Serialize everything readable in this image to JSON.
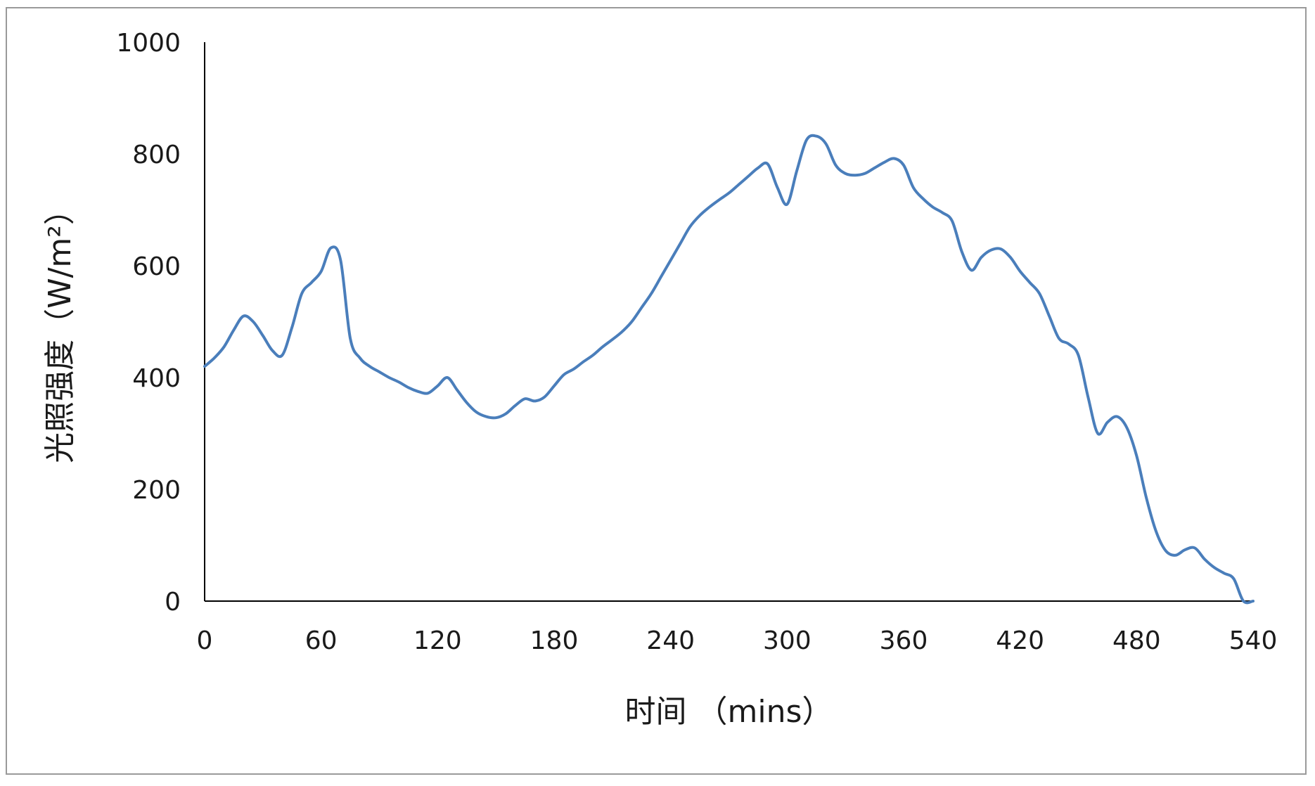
{
  "chart_data": {
    "type": "line",
    "xlabel": "时间 （mins）",
    "ylabel": "光照强度（W/m²）",
    "xlim": [
      0,
      540
    ],
    "ylim": [
      0,
      1000
    ],
    "x_ticks": [
      "0",
      "60",
      "120",
      "180",
      "240",
      "300",
      "360",
      "420",
      "480",
      "540"
    ],
    "y_ticks": [
      "0",
      "200",
      "400",
      "600",
      "800",
      "1000"
    ],
    "grid": false,
    "line_color": "#4A7EBB",
    "series": [
      {
        "x": [
          0,
          5,
          10,
          15,
          20,
          25,
          30,
          35,
          40,
          45,
          50,
          55,
          60,
          65,
          70,
          75,
          80,
          85,
          90,
          95,
          100,
          105,
          110,
          115,
          120,
          125,
          130,
          135,
          140,
          145,
          150,
          155,
          160,
          165,
          170,
          175,
          180,
          185,
          190,
          195,
          200,
          205,
          210,
          215,
          220,
          225,
          230,
          235,
          240,
          245,
          250,
          255,
          260,
          265,
          270,
          275,
          280,
          285,
          290,
          295,
          300,
          305,
          310,
          315,
          320,
          325,
          330,
          335,
          340,
          345,
          350,
          355,
          360,
          365,
          370,
          375,
          380,
          385,
          390,
          395,
          400,
          405,
          410,
          415,
          420,
          425,
          430,
          435,
          440,
          445,
          450,
          455,
          460,
          465,
          470,
          475,
          480,
          485,
          490,
          495,
          500,
          505,
          510,
          515,
          520,
          525,
          530,
          535,
          540
        ],
        "y": [
          420,
          435,
          455,
          485,
          510,
          500,
          475,
          448,
          440,
          490,
          550,
          570,
          590,
          632,
          610,
          470,
          435,
          420,
          410,
          400,
          392,
          382,
          375,
          372,
          385,
          400,
          378,
          355,
          338,
          330,
          328,
          335,
          350,
          362,
          358,
          365,
          385,
          405,
          415,
          428,
          440,
          455,
          468,
          482,
          500,
          525,
          550,
          580,
          610,
          640,
          670,
          690,
          705,
          718,
          730,
          745,
          760,
          775,
          782,
          740,
          710,
          770,
          825,
          832,
          818,
          780,
          765,
          762,
          765,
          775,
          785,
          792,
          780,
          740,
          720,
          705,
          695,
          680,
          625,
          592,
          615,
          628,
          630,
          615,
          590,
          570,
          550,
          510,
          470,
          460,
          440,
          365,
          300,
          320,
          330,
          310,
          260,
          185,
          125,
          90,
          82,
          92,
          95,
          75,
          60,
          50,
          40,
          0,
          0
        ]
      }
    ]
  }
}
